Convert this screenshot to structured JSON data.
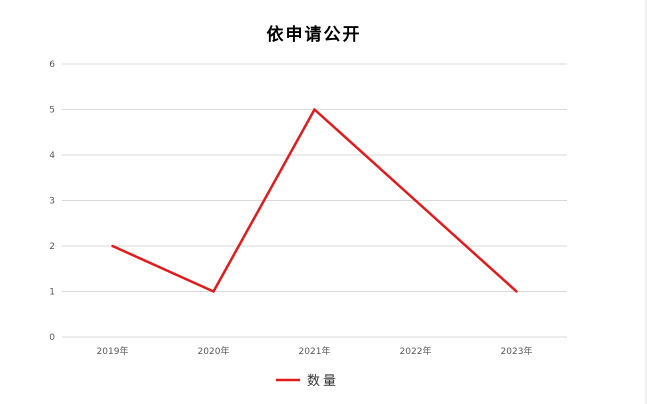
{
  "chart_data": {
    "type": "line",
    "title": "依申请公开",
    "categories": [
      "2019年",
      "2020年",
      "2021年",
      "2022年",
      "2023年"
    ],
    "series": [
      {
        "name": "数量",
        "values": [
          2,
          1,
          5,
          3,
          1
        ],
        "color": "#e31a1c"
      }
    ],
    "ylim": [
      0,
      6
    ],
    "yticks": [
      "0",
      "1",
      "2",
      "3",
      "4",
      "5",
      "6"
    ],
    "grid": true,
    "legend": "bottom"
  }
}
